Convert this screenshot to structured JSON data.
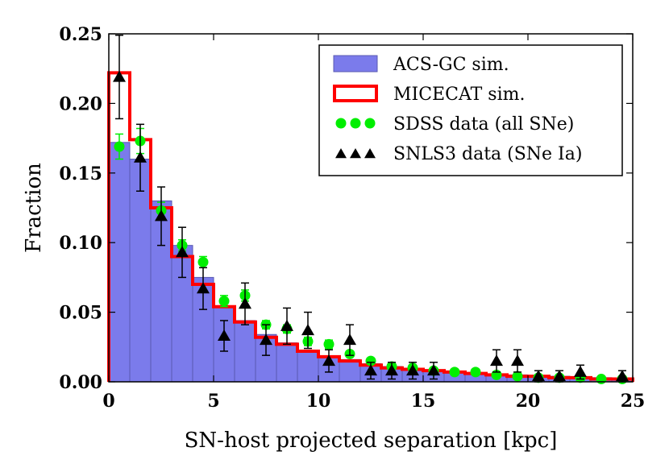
{
  "chart_data": {
    "type": "bar",
    "xlabel": "SN-host projected separation [kpc]",
    "ylabel": "Fraction",
    "xlim": [
      0,
      25
    ],
    "ylim": [
      0,
      0.25
    ],
    "xticks": [
      0,
      5,
      10,
      15,
      20,
      25
    ],
    "yticks": [
      0.0,
      0.05,
      0.1,
      0.15,
      0.2,
      0.25
    ],
    "xtick_labels": [
      "0",
      "5",
      "10",
      "15",
      "20",
      "25"
    ],
    "ytick_labels": [
      "0.00",
      "0.05",
      "0.10",
      "0.15",
      "0.20",
      "0.25"
    ],
    "bin_edges": [
      0,
      1,
      2,
      3,
      4,
      5,
      6,
      7,
      8,
      9,
      10,
      11,
      12,
      13,
      14,
      15,
      16,
      17,
      18,
      19,
      20,
      21,
      22,
      23,
      24,
      25
    ],
    "legend_position": "top-right",
    "grid": false,
    "series": [
      {
        "name": "ACS-GC sim.",
        "kind": "filled-histogram",
        "color": "#7B7BEB",
        "values": [
          0.172,
          0.16,
          0.13,
          0.098,
          0.075,
          0.054,
          0.044,
          0.034,
          0.028,
          0.022,
          0.018,
          0.016,
          0.013,
          0.011,
          0.009,
          0.008,
          0.007,
          0.006,
          0.005,
          0.005,
          0.004,
          0.004,
          0.003,
          0.003,
          0.002
        ]
      },
      {
        "name": "MICECAT sim.",
        "kind": "step",
        "color": "#FF0000",
        "values": [
          0.222,
          0.174,
          0.125,
          0.09,
          0.07,
          0.054,
          0.043,
          0.032,
          0.027,
          0.022,
          0.018,
          0.015,
          0.012,
          0.01,
          0.009,
          0.008,
          0.007,
          0.006,
          0.005,
          0.004,
          0.004,
          0.003,
          0.003,
          0.002,
          0.002
        ]
      },
      {
        "name": "SDSS data (all SNe)",
        "kind": "points-circle",
        "color": "#00EE00",
        "x": [
          0.5,
          1.5,
          2.5,
          3.5,
          4.5,
          5.5,
          6.5,
          7.5,
          8.5,
          9.5,
          10.5,
          11.5,
          12.5,
          13.5,
          14.5,
          15.5,
          16.5,
          17.5,
          18.5,
          19.5,
          20.5,
          21.5,
          22.5,
          23.5,
          24.5
        ],
        "y": [
          0.169,
          0.173,
          0.123,
          0.098,
          0.086,
          0.058,
          0.062,
          0.041,
          0.038,
          0.029,
          0.027,
          0.02,
          0.015,
          0.011,
          0.01,
          0.008,
          0.007,
          0.007,
          0.005,
          0.004,
          0.003,
          0.003,
          0.003,
          0.002,
          0.002
        ],
        "err": [
          0.009,
          0.009,
          0.006,
          0.004,
          0.004,
          0.004,
          0.004,
          0.003,
          0.003,
          0.003,
          0.003,
          0.002,
          0.002,
          0.002,
          0.002,
          0.002,
          0.001,
          0.001,
          0.001,
          0.001,
          0.001,
          0.001,
          0.001,
          0.001,
          0.001
        ]
      },
      {
        "name": "SNLS3 data (SNe Ia)",
        "kind": "points-triangle",
        "color": "#000000",
        "x": [
          0.5,
          1.5,
          2.5,
          3.5,
          4.5,
          5.5,
          6.5,
          7.5,
          8.5,
          9.5,
          10.5,
          11.5,
          12.5,
          13.5,
          14.5,
          15.5,
          18.5,
          19.5,
          20.5,
          21.5,
          22.5,
          24.5
        ],
        "y": [
          0.219,
          0.161,
          0.119,
          0.093,
          0.067,
          0.033,
          0.056,
          0.03,
          0.04,
          0.037,
          0.015,
          0.03,
          0.008,
          0.008,
          0.008,
          0.008,
          0.015,
          0.015,
          0.004,
          0.004,
          0.007,
          0.004
        ],
        "err": [
          0.03,
          0.024,
          0.021,
          0.018,
          0.015,
          0.011,
          0.015,
          0.011,
          0.013,
          0.013,
          0.008,
          0.011,
          0.006,
          0.006,
          0.006,
          0.006,
          0.008,
          0.008,
          0.004,
          0.004,
          0.005,
          0.004
        ]
      }
    ]
  }
}
